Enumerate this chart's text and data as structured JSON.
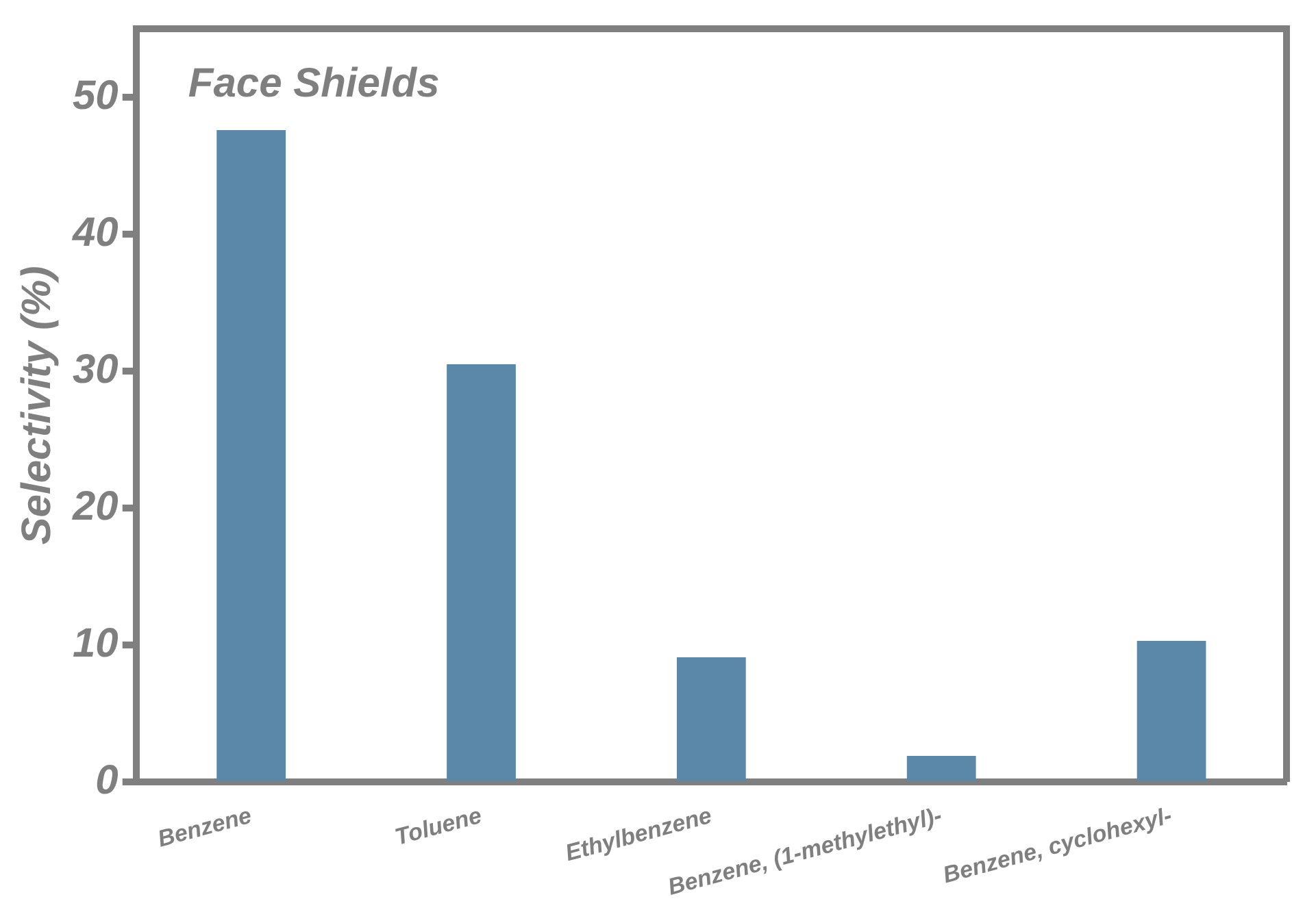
{
  "chart_data": {
    "type": "bar",
    "title": "Face Shields",
    "ylabel": "Selectivity (%)",
    "categories": [
      "Benzene",
      "Toluene",
      "Ethylbenzene",
      "Benzene, (1-methylethyl)-",
      "Benzene, cyclohexyl-"
    ],
    "values": [
      47.6,
      30.5,
      9.1,
      1.9,
      10.3
    ],
    "color": "#5b88a8",
    "ylim": [
      0,
      55
    ],
    "yticks": [
      0,
      10,
      20,
      30,
      40,
      50
    ],
    "grid": false,
    "legend": false
  }
}
